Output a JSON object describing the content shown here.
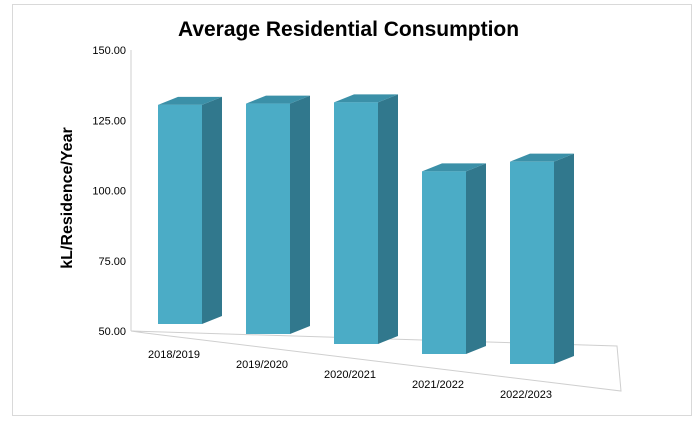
{
  "chart_data": {
    "type": "bar",
    "title": "Average Residential Consumption",
    "ylabel": "kL/Residence/Year",
    "xlabel": "",
    "categories": [
      "2018/2019",
      "2019/2020",
      "2020/2021",
      "2021/2022",
      "2022/2023"
    ],
    "values": [
      128,
      132,
      136,
      115,
      122
    ],
    "ylim": [
      50,
      150
    ],
    "yticks": [
      "150.00",
      "125.00",
      "100.00",
      "75.00",
      "50.00"
    ],
    "grid": false,
    "legend": "none",
    "style": "3d-column",
    "colors": {
      "front": "#4bacc6",
      "side": "#31788d",
      "top": "#3b90a8"
    }
  }
}
